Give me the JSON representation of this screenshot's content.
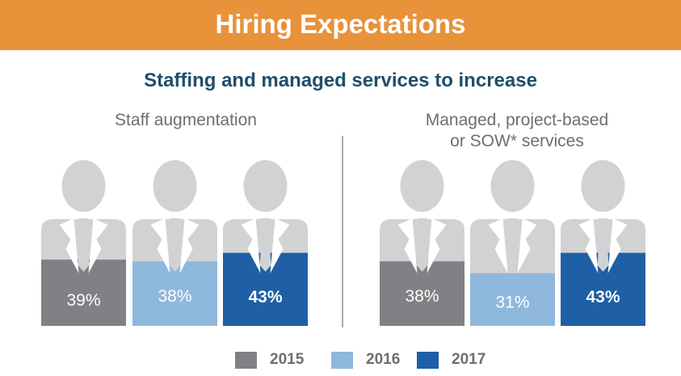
{
  "header": {
    "title": "Hiring Expectations"
  },
  "subtitle": "Staffing and managed services to increase",
  "colors": {
    "banner": "#e8923a",
    "2015": "#808184",
    "2016": "#8fb8dd",
    "2017": "#1f5fa5",
    "figure": "#d1d2d4"
  },
  "chart_data": {
    "type": "bar",
    "title": "Staffing and managed services to increase",
    "categories": [
      "2015",
      "2016",
      "2017"
    ],
    "groups": [
      {
        "label": "Staff augmentation",
        "values": [
          39,
          38,
          43
        ],
        "labels": [
          "39%",
          "38%",
          "43%"
        ]
      },
      {
        "label_line1": "Managed, project-based",
        "label_line2": "or SOW* services",
        "values": [
          38,
          31,
          43
        ],
        "labels": [
          "38%",
          "31%",
          "43%"
        ]
      }
    ],
    "legend": [
      {
        "name": "2015",
        "color": "#808184"
      },
      {
        "name": "2016",
        "color": "#8fb8dd"
      },
      {
        "name": "2017",
        "color": "#1f5fa5"
      }
    ],
    "legend_position": "bottom",
    "unit": "%"
  }
}
